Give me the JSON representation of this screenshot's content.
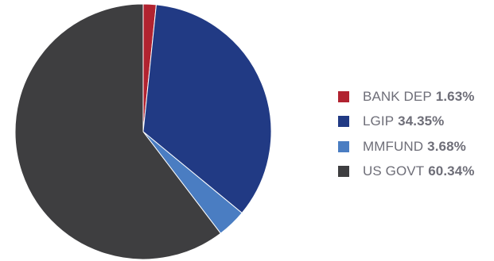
{
  "chart_data": {
    "type": "pie",
    "slices": [
      {
        "label": "BANK DEP",
        "value": 1.63,
        "display": "1.63%",
        "color": "#b12330"
      },
      {
        "label": "LGIP",
        "value": 34.35,
        "display": "34.35%",
        "color": "#213a84"
      },
      {
        "label": "MMFUND",
        "value": 3.68,
        "display": "3.68%",
        "color": "#4a7dc2"
      },
      {
        "label": "US GOVT",
        "value": 60.34,
        "display": "60.34%",
        "color": "#3e3e40"
      }
    ],
    "start_angle_deg": 0,
    "direction": "clockwise",
    "legend_position": "right"
  }
}
